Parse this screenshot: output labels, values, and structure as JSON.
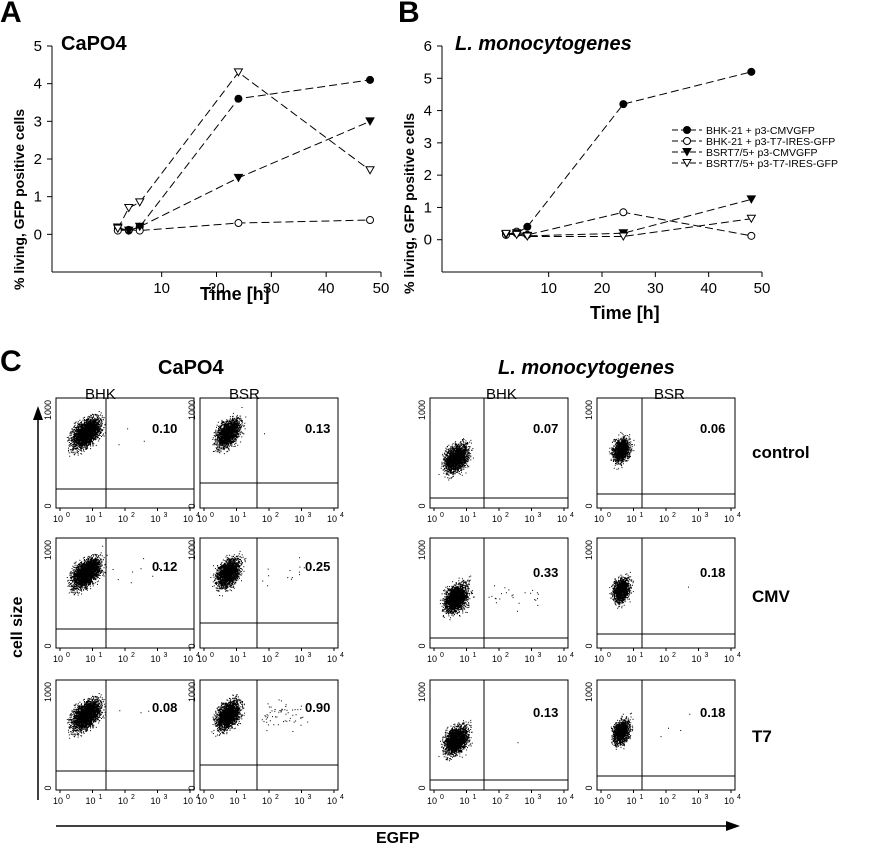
{
  "panels": {
    "a": "A",
    "b": "B",
    "c": "C"
  },
  "chart_data": [
    {
      "type": "line",
      "title": "CaPO4",
      "xlabel": "Time [h]",
      "ylabel": "% living, GFP positive cells",
      "xlim": [
        -10,
        50
      ],
      "ylim": [
        -1,
        5
      ],
      "xticks": [
        10,
        20,
        30,
        40,
        50
      ],
      "yticks": [
        0,
        1,
        2,
        3,
        4,
        5
      ],
      "grid": false,
      "series": [
        {
          "marker": "filled-circle",
          "x": [
            2,
            4,
            6,
            24,
            48
          ],
          "y": [
            0.15,
            0.1,
            0.2,
            3.6,
            4.1
          ]
        },
        {
          "marker": "open-circle",
          "x": [
            2,
            4,
            6,
            24,
            48
          ],
          "y": [
            0.1,
            0.12,
            0.1,
            0.3,
            0.38
          ]
        },
        {
          "marker": "filled-triangle-down",
          "x": [
            2,
            4,
            6,
            24,
            48
          ],
          "y": [
            0.18,
            0.1,
            0.2,
            1.5,
            3.0
          ]
        },
        {
          "marker": "open-triangle-down",
          "x": [
            2,
            4,
            6,
            24,
            48
          ],
          "y": [
            0.15,
            0.7,
            0.85,
            4.3,
            1.7
          ]
        }
      ]
    },
    {
      "type": "line",
      "title": "L. monocytogenes",
      "title_italic": true,
      "xlabel": "Time [h]",
      "ylabel": "% living, GFP positive cells",
      "xlim": [
        -10,
        50
      ],
      "ylim": [
        -1,
        6
      ],
      "xticks": [
        10,
        20,
        30,
        40,
        50
      ],
      "yticks": [
        0,
        1,
        2,
        3,
        4,
        5,
        6
      ],
      "grid": false,
      "legend_position": "right",
      "series": [
        {
          "name": "BHK-21 + p3-CMVGFP",
          "marker": "filled-circle",
          "x": [
            2,
            4,
            6,
            24,
            48
          ],
          "y": [
            0.18,
            0.2,
            0.4,
            4.2,
            5.2
          ]
        },
        {
          "name": "BHK-21 + p3-T7-IRES-GFP",
          "marker": "open-circle",
          "x": [
            2,
            4,
            6,
            24,
            48
          ],
          "y": [
            0.15,
            0.25,
            0.15,
            0.85,
            0.12
          ]
        },
        {
          "name": "BSRT7/5+ p3-CMVGFP",
          "marker": "filled-triangle-down",
          "x": [
            2,
            4,
            6,
            24,
            48
          ],
          "y": [
            0.15,
            0.2,
            0.12,
            0.2,
            1.25
          ]
        },
        {
          "name": "BSRT7/5+ p3-T7-IRES-GFP",
          "marker": "open-triangle-down",
          "x": [
            2,
            4,
            6,
            24,
            48
          ],
          "y": [
            0.18,
            0.15,
            0.1,
            0.1,
            0.65
          ]
        }
      ]
    }
  ],
  "flow": {
    "group_titles": [
      "CaPO4",
      "L. monocytogenes"
    ],
    "columns": [
      "BHK",
      "BSR"
    ],
    "rows": [
      "control",
      "CMV",
      "T7"
    ],
    "percentages": {
      "capo4": [
        [
          "0.10",
          "0.13"
        ],
        [
          "0.12",
          "0.25"
        ],
        [
          "0.08",
          "0.90"
        ]
      ],
      "listeria": [
        [
          "0.07",
          "0.06"
        ],
        [
          "0.33",
          "0.18"
        ],
        [
          "0.13",
          "0.18"
        ]
      ]
    },
    "y_axis_label": "cell size",
    "x_axis_label": "EGFP",
    "y_ticks": [
      "0",
      "1000"
    ],
    "x_ticks": [
      "10",
      "10",
      "10",
      "10",
      "10"
    ],
    "x_tick_exponents": [
      "0",
      "1",
      "2",
      "3",
      "4"
    ]
  }
}
